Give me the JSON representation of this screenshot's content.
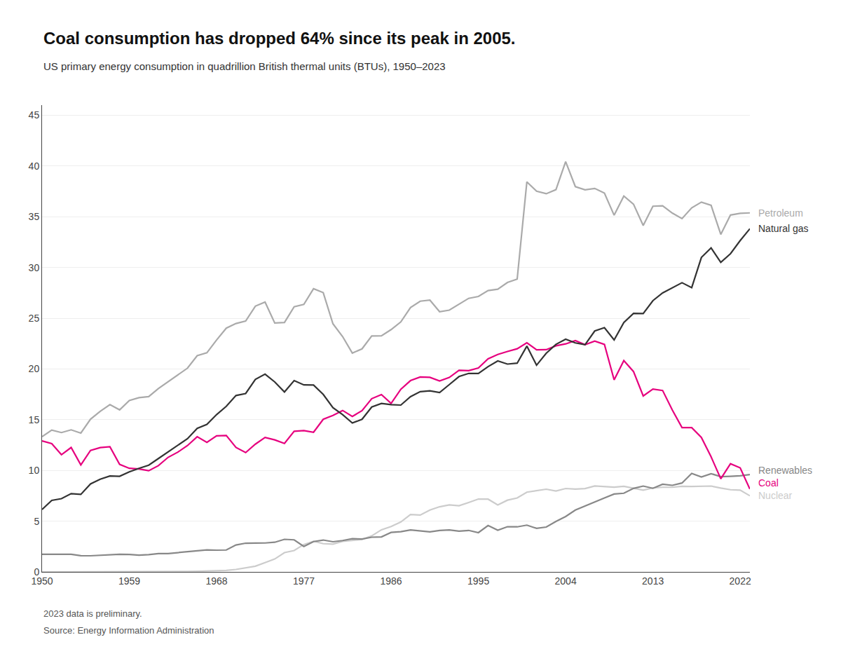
{
  "chart_data": {
    "type": "line",
    "title": "Coal consumption has dropped 64% since its peak in 2005.",
    "subtitle": "US primary energy consumption in quadrillion British thermal units (BTUs), 1950–2023",
    "annotations": [
      "2023 data is preliminary.",
      "Source: Energy Information Administration"
    ],
    "x": [
      1950,
      1951,
      1952,
      1953,
      1954,
      1955,
      1956,
      1957,
      1958,
      1959,
      1960,
      1961,
      1962,
      1963,
      1964,
      1965,
      1966,
      1967,
      1968,
      1969,
      1970,
      1971,
      1972,
      1973,
      1974,
      1975,
      1976,
      1977,
      1978,
      1979,
      1980,
      1981,
      1982,
      1983,
      1984,
      1985,
      1986,
      1987,
      1988,
      1989,
      1990,
      1991,
      1992,
      1993,
      1994,
      1995,
      1996,
      1997,
      1998,
      1999,
      2000,
      2001,
      2002,
      2003,
      2004,
      2005,
      2006,
      2007,
      2008,
      2009,
      2010,
      2011,
      2012,
      2013,
      2014,
      2015,
      2016,
      2017,
      2018,
      2019,
      2020,
      2021,
      2022,
      2023
    ],
    "series": [
      {
        "name": "Nuclear",
        "color": "#cccccc",
        "values": [
          0.0,
          0.0,
          0.0,
          0.0,
          0.0,
          0.0,
          0.0,
          0.0,
          0.0,
          0.0,
          0.01,
          0.02,
          0.03,
          0.04,
          0.04,
          0.04,
          0.06,
          0.09,
          0.14,
          0.15,
          0.24,
          0.41,
          0.56,
          0.91,
          1.27,
          1.9,
          2.11,
          2.7,
          3.02,
          2.78,
          2.74,
          3.01,
          3.13,
          3.2,
          3.55,
          4.15,
          4.47,
          4.92,
          5.65,
          5.6,
          6.1,
          6.42,
          6.61,
          6.52,
          6.84,
          7.18,
          7.17,
          6.6,
          7.07,
          7.29,
          7.86,
          8.03,
          8.15,
          7.97,
          8.22,
          8.16,
          8.21,
          8.47,
          8.43,
          8.35,
          8.44,
          8.26,
          8.06,
          8.27,
          8.34,
          8.34,
          8.43,
          8.42,
          8.44,
          8.46,
          8.26,
          8.1,
          8.06,
          7.5
        ]
      },
      {
        "name": "Renewables",
        "color": "#888888",
        "values": [
          1.73,
          1.76,
          1.74,
          1.73,
          1.6,
          1.59,
          1.64,
          1.68,
          1.74,
          1.72,
          1.65,
          1.7,
          1.81,
          1.81,
          1.9,
          1.98,
          2.06,
          2.17,
          2.14,
          2.16,
          2.65,
          2.83,
          2.84,
          2.85,
          2.92,
          3.21,
          3.16,
          2.51,
          2.99,
          3.14,
          2.97,
          3.09,
          3.27,
          3.24,
          3.42,
          3.45,
          3.89,
          3.96,
          4.14,
          4.07,
          3.95,
          4.08,
          4.13,
          4.01,
          4.09,
          3.87,
          4.57,
          4.11,
          4.45,
          4.44,
          4.61,
          4.29,
          4.42,
          4.97,
          5.46,
          6.09,
          6.5,
          6.93,
          7.29,
          7.67,
          7.75,
          8.23,
          8.46,
          8.24,
          8.64,
          8.53,
          8.76,
          9.7,
          9.36,
          9.68,
          9.39,
          9.42,
          9.47,
          9.59
        ]
      },
      {
        "name": "Petroleum",
        "color": "#aaaaaa",
        "values": [
          13.32,
          13.98,
          13.73,
          14.0,
          13.68,
          15.05,
          15.83,
          16.48,
          15.97,
          16.89,
          17.17,
          17.27,
          18.07,
          18.72,
          19.4,
          20.08,
          21.31,
          21.59,
          22.85,
          24.02,
          24.48,
          24.72,
          26.19,
          26.59,
          24.53,
          24.58,
          26.13,
          26.36,
          27.91,
          27.52,
          24.45,
          23.19,
          21.56,
          21.98,
          23.25,
          23.27,
          23.88,
          24.64,
          26.05,
          26.68,
          26.78,
          25.64,
          25.8,
          26.41,
          26.96,
          27.14,
          27.72,
          27.86,
          28.52,
          28.85,
          38.44,
          37.52,
          37.27,
          37.67,
          40.43,
          37.97,
          37.65,
          37.79,
          37.33,
          35.15,
          37.04,
          36.24,
          34.14,
          36.04,
          36.08,
          35.36,
          34.82,
          35.88,
          36.44,
          36.13,
          33.26,
          35.17,
          35.34,
          35.38
        ]
      },
      {
        "name": "Coal",
        "color": "#e6007e",
        "values": [
          12.91,
          12.64,
          11.55,
          12.26,
          10.54,
          11.97,
          12.25,
          12.33,
          10.6,
          10.21,
          10.14,
          9.97,
          10.47,
          11.29,
          11.8,
          12.45,
          13.32,
          12.77,
          13.41,
          13.44,
          12.26,
          11.76,
          12.59,
          13.25,
          13.01,
          12.66,
          13.86,
          13.92,
          13.76,
          15.04,
          15.42,
          15.91,
          15.32,
          15.89,
          17.07,
          17.48,
          16.6,
          18.0,
          18.85,
          19.21,
          19.17,
          18.82,
          19.16,
          19.87,
          19.83,
          20.09,
          21.0,
          21.43,
          21.72,
          21.99,
          22.58,
          21.89,
          21.9,
          22.28,
          22.47,
          22.79,
          22.39,
          22.74,
          22.42,
          18.92,
          20.83,
          19.74,
          17.34,
          18.02,
          17.88,
          15.95,
          14.22,
          14.22,
          13.25,
          11.34,
          9.18,
          10.66,
          10.25,
          8.16
        ]
      },
      {
        "name": "Natural gas",
        "color": "#333333",
        "values": [
          6.15,
          7.05,
          7.22,
          7.71,
          7.64,
          8.67,
          9.14,
          9.45,
          9.42,
          9.86,
          10.21,
          10.52,
          11.17,
          11.83,
          12.44,
          13.13,
          14.14,
          14.54,
          15.5,
          16.32,
          17.38,
          17.58,
          18.97,
          19.49,
          18.72,
          17.73,
          18.85,
          18.43,
          18.41,
          17.49,
          16.19,
          15.49,
          14.67,
          15.04,
          16.25,
          16.6,
          16.48,
          16.44,
          17.27,
          17.76,
          17.84,
          17.67,
          18.46,
          19.25,
          19.56,
          19.56,
          20.23,
          20.79,
          20.48,
          20.57,
          22.25,
          20.37,
          21.55,
          22.42,
          22.93,
          22.57,
          22.39,
          23.74,
          24.07,
          22.86,
          24.58,
          25.48,
          25.46,
          26.73,
          27.49,
          27.99,
          28.5,
          28.01,
          30.99,
          31.93,
          30.5,
          31.36,
          32.65,
          33.82
        ]
      }
    ],
    "xlim": [
      1950,
      2023
    ],
    "xticks": [
      1950,
      1959,
      1968,
      1977,
      1986,
      1995,
      2004,
      2013,
      2022
    ],
    "ylim": [
      0,
      46
    ],
    "yticks": [
      0,
      5,
      10,
      15,
      20,
      25,
      30,
      35,
      40,
      45
    ],
    "grid": true
  }
}
